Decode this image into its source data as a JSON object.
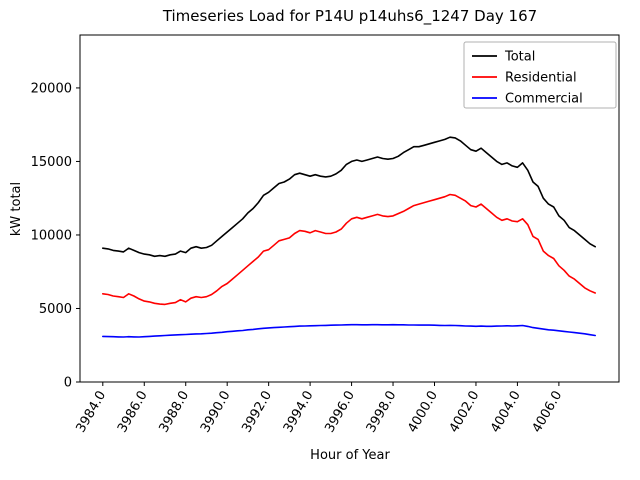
{
  "chart_data": {
    "type": "line",
    "title": "Timeseries Load for P14U p14uhs6_1247  Day 167",
    "xlabel": "Hour of Year",
    "ylabel": "kW total",
    "xlim": [
      3982.9,
      4008.9
    ],
    "ylim": [
      0,
      23600
    ],
    "grid": false,
    "legend_position": "upper right",
    "xtick_labels": [
      "3984.0",
      "3986.0",
      "3988.0",
      "3990.0",
      "3992.0",
      "3994.0",
      "3996.0",
      "3998.0",
      "4000.0",
      "4002.0",
      "4004.0",
      "4006.0"
    ],
    "xtick_values": [
      3984,
      3986,
      3988,
      3990,
      3992,
      3994,
      3996,
      3998,
      4000,
      4002,
      4004,
      4006
    ],
    "ytick_labels": [
      "0",
      "5000",
      "10000",
      "15000",
      "20000"
    ],
    "ytick_values": [
      0,
      5000,
      10000,
      15000,
      20000
    ],
    "x": [
      3984,
      3984.25,
      3984.5,
      3984.75,
      3985,
      3985.25,
      3985.5,
      3985.75,
      3986,
      3986.25,
      3986.5,
      3986.75,
      3987,
      3987.25,
      3987.5,
      3987.75,
      3988,
      3988.25,
      3988.5,
      3988.75,
      3989,
      3989.25,
      3989.5,
      3989.75,
      3990,
      3990.25,
      3990.5,
      3990.75,
      3991,
      3991.25,
      3991.5,
      3991.75,
      3992,
      3992.25,
      3992.5,
      3992.75,
      3993,
      3993.25,
      3993.5,
      3993.75,
      3994,
      3994.25,
      3994.5,
      3994.75,
      3995,
      3995.25,
      3995.5,
      3995.75,
      3996,
      3996.25,
      3996.5,
      3996.75,
      3997,
      3997.25,
      3997.5,
      3997.75,
      3998,
      3998.25,
      3998.5,
      3998.75,
      3999,
      3999.25,
      3999.5,
      3999.75,
      4000,
      4000.25,
      4000.5,
      4000.75,
      4001,
      4001.25,
      4001.5,
      4001.75,
      4002,
      4002.25,
      4002.5,
      4002.75,
      4003,
      4003.25,
      4003.5,
      4003.75,
      4004,
      4004.25,
      4004.5,
      4004.75,
      4005,
      4005.25,
      4005.5,
      4005.75,
      4006,
      4006.25,
      4006.5,
      4006.75,
      4007,
      4007.25,
      4007.5,
      4007.75
    ],
    "series": [
      {
        "name": "Total",
        "color": "#000000",
        "values": [
          9100,
          9050,
          8950,
          8900,
          8850,
          9100,
          8950,
          8800,
          8700,
          8650,
          8550,
          8600,
          8550,
          8650,
          8700,
          8900,
          8800,
          9100,
          9200,
          9100,
          9150,
          9300,
          9600,
          9900,
          10200,
          10500,
          10800,
          11100,
          11500,
          11800,
          12200,
          12700,
          12900,
          13200,
          13500,
          13600,
          13800,
          14100,
          14200,
          14100,
          14000,
          14100,
          14000,
          13950,
          14000,
          14150,
          14400,
          14800,
          15000,
          15100,
          15000,
          15100,
          15200,
          15300,
          15200,
          15150,
          15200,
          15350,
          15600,
          15800,
          16000,
          16000,
          16100,
          16200,
          16300,
          16400,
          16500,
          16650,
          16600,
          16400,
          16100,
          15800,
          15700,
          15900,
          15600,
          15300,
          15000,
          14800,
          14900,
          14700,
          14600,
          14900,
          14400,
          13600,
          13300,
          12500,
          12100,
          11900,
          11300,
          11000,
          10500,
          10300,
          10000,
          9700,
          9400,
          9200
        ]
      },
      {
        "name": "Residential",
        "color": "#ff0000",
        "values": [
          6000,
          5950,
          5850,
          5800,
          5750,
          6000,
          5850,
          5650,
          5500,
          5450,
          5350,
          5300,
          5280,
          5350,
          5400,
          5600,
          5450,
          5700,
          5800,
          5750,
          5800,
          5950,
          6200,
          6500,
          6700,
          7000,
          7300,
          7600,
          7900,
          8200,
          8500,
          8900,
          9000,
          9300,
          9600,
          9700,
          9800,
          10100,
          10300,
          10250,
          10150,
          10300,
          10200,
          10100,
          10100,
          10200,
          10400,
          10800,
          11100,
          11200,
          11100,
          11200,
          11300,
          11400,
          11300,
          11250,
          11300,
          11450,
          11600,
          11800,
          12000,
          12100,
          12200,
          12300,
          12400,
          12500,
          12600,
          12750,
          12700,
          12500,
          12300,
          12000,
          11900,
          12100,
          11800,
          11500,
          11200,
          11000,
          11100,
          10950,
          10900,
          11100,
          10700,
          9900,
          9700,
          8900,
          8600,
          8400,
          7900,
          7600,
          7200,
          7000,
          6700,
          6400,
          6200,
          6050
        ]
      },
      {
        "name": "Commercial",
        "color": "#0000ff",
        "values": [
          3100,
          3090,
          3080,
          3070,
          3060,
          3080,
          3070,
          3060,
          3080,
          3100,
          3120,
          3140,
          3160,
          3180,
          3200,
          3220,
          3230,
          3250,
          3270,
          3280,
          3300,
          3320,
          3350,
          3380,
          3420,
          3450,
          3480,
          3500,
          3550,
          3580,
          3620,
          3650,
          3680,
          3700,
          3720,
          3740,
          3760,
          3780,
          3800,
          3810,
          3820,
          3830,
          3840,
          3850,
          3860,
          3870,
          3880,
          3890,
          3900,
          3900,
          3890,
          3890,
          3900,
          3900,
          3890,
          3890,
          3900,
          3890,
          3890,
          3880,
          3880,
          3870,
          3870,
          3870,
          3860,
          3850,
          3840,
          3850,
          3840,
          3830,
          3810,
          3800,
          3790,
          3800,
          3790,
          3790,
          3800,
          3810,
          3820,
          3810,
          3820,
          3840,
          3780,
          3700,
          3650,
          3600,
          3550,
          3520,
          3480,
          3440,
          3400,
          3360,
          3320,
          3280,
          3220,
          3160
        ]
      }
    ]
  }
}
